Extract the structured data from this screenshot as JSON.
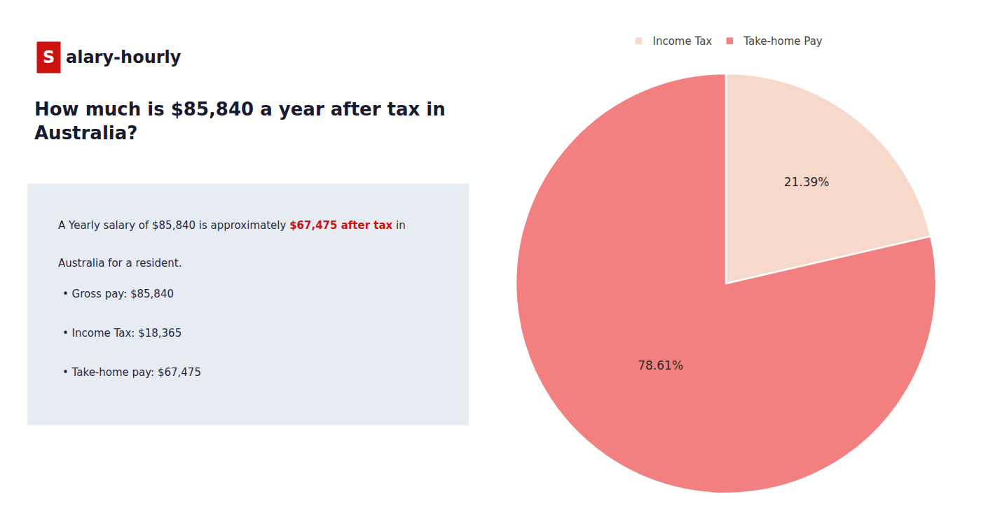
{
  "chart_data": {
    "type": "pie",
    "title": "How much is $85,840 a year after tax in\nAustralia?",
    "annotations": [
      {
        "text": "S",
        "color": "#cc1111"
      },
      {
        "text": "alary-hourly"
      },
      {
        "text": "A Yearly salary of $85,840 is approximately "
      },
      {
        "text": "$67,475 after tax",
        "color": "#cc1111"
      },
      {
        "text": " in"
      },
      {
        "text": "Australia for a resident."
      },
      {
        "text": "• Gross pay: $85,840"
      },
      {
        "text": "• Income Tax: $18,365"
      },
      {
        "text": "• Take-home pay: $67,475"
      }
    ],
    "categories": [
      "Income Tax",
      "Take-home Pay"
    ],
    "values": [
      21.39,
      78.61
    ],
    "value_labels": [
      "21.39%",
      "78.61%"
    ],
    "colors": [
      "#f7d9cb",
      "#f28080"
    ],
    "data_labels": true,
    "legend": "top"
  }
}
